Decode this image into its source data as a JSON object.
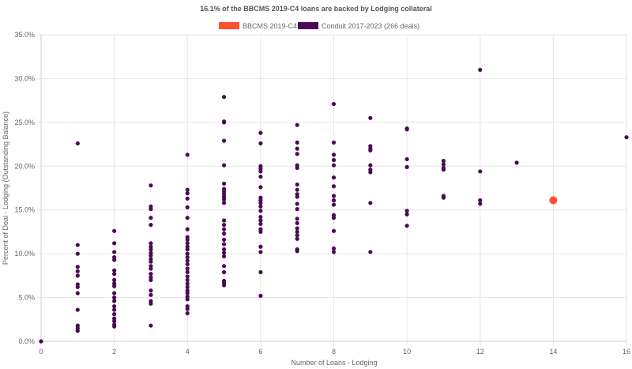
{
  "chart_data": {
    "type": "scatter",
    "title": "16.1% of the BBCMS 2019-C4 loans are backed by Lodging collateral",
    "xlabel": "Number of Loans - Lodging",
    "ylabel": "Percent of Deal - Lodging (Outstanding Balance)",
    "xlim": [
      0,
      16
    ],
    "ylim": [
      0,
      35
    ],
    "x_ticks": [
      "0",
      "2",
      "4",
      "6",
      "8",
      "10",
      "12",
      "14",
      "16"
    ],
    "y_ticks": [
      "0.0%",
      "5.0%",
      "10.0%",
      "15.0%",
      "20.0%",
      "25.0%",
      "30.0%",
      "35.0%"
    ],
    "grid": true,
    "legend_position": "top",
    "series": [
      {
        "name": "BBCMS 2019-C4",
        "color": "#ff4f2e",
        "points": [
          [
            14,
            16.1
          ]
        ]
      },
      {
        "name": "Conduit 2017-2023 (266 deals)",
        "color": "#4b0a55",
        "points": [
          [
            0,
            0.0
          ],
          [
            1,
            22.6
          ],
          [
            1,
            11.0
          ],
          [
            1,
            10.0
          ],
          [
            1,
            8.5
          ],
          [
            1,
            8.0
          ],
          [
            1,
            7.5
          ],
          [
            1,
            6.5
          ],
          [
            1,
            6.2
          ],
          [
            1,
            5.5
          ],
          [
            1,
            3.6
          ],
          [
            1,
            1.8
          ],
          [
            1,
            1.5
          ],
          [
            1,
            1.2
          ],
          [
            2,
            12.6
          ],
          [
            2,
            11.2
          ],
          [
            2,
            10.2
          ],
          [
            2,
            9.6
          ],
          [
            2,
            9.3
          ],
          [
            2,
            8.1
          ],
          [
            2,
            7.7
          ],
          [
            2,
            7.0
          ],
          [
            2,
            6.6
          ],
          [
            2,
            6.3
          ],
          [
            2,
            5.5
          ],
          [
            2,
            5.0
          ],
          [
            2,
            4.6
          ],
          [
            2,
            4.0
          ],
          [
            2,
            3.6
          ],
          [
            2,
            3.1
          ],
          [
            2,
            2.6
          ],
          [
            2,
            2.3
          ],
          [
            2,
            1.9
          ],
          [
            2,
            1.7
          ],
          [
            3,
            17.8
          ],
          [
            3,
            15.4
          ],
          [
            3,
            15.1
          ],
          [
            3,
            14.1
          ],
          [
            3,
            13.3
          ],
          [
            3,
            11.2
          ],
          [
            3,
            10.8
          ],
          [
            3,
            10.5
          ],
          [
            3,
            10.1
          ],
          [
            3,
            9.8
          ],
          [
            3,
            9.4
          ],
          [
            3,
            9.1
          ],
          [
            3,
            8.6
          ],
          [
            3,
            8.3
          ],
          [
            3,
            7.7
          ],
          [
            3,
            7.3
          ],
          [
            3,
            7.0
          ],
          [
            3,
            5.8
          ],
          [
            3,
            5.3
          ],
          [
            3,
            4.6
          ],
          [
            3,
            4.3
          ],
          [
            3,
            1.8
          ],
          [
            4,
            21.3
          ],
          [
            4,
            17.3
          ],
          [
            4,
            16.9
          ],
          [
            4,
            16.3
          ],
          [
            4,
            15.3
          ],
          [
            4,
            14.1
          ],
          [
            4,
            12.8
          ],
          [
            4,
            11.9
          ],
          [
            4,
            11.6
          ],
          [
            4,
            11.2
          ],
          [
            4,
            10.8
          ],
          [
            4,
            10.5
          ],
          [
            4,
            10.0
          ],
          [
            4,
            9.6
          ],
          [
            4,
            9.2
          ],
          [
            4,
            8.8
          ],
          [
            4,
            8.3
          ],
          [
            4,
            7.9
          ],
          [
            4,
            7.4
          ],
          [
            4,
            7.0
          ],
          [
            4,
            6.6
          ],
          [
            4,
            6.2
          ],
          [
            4,
            5.8
          ],
          [
            4,
            5.5
          ],
          [
            4,
            5.1
          ],
          [
            4,
            4.8
          ],
          [
            4,
            4.0
          ],
          [
            4,
            3.7
          ],
          [
            4,
            3.2
          ],
          [
            5,
            27.9
          ],
          [
            5,
            25.1
          ],
          [
            5,
            25.0
          ],
          [
            5,
            22.9
          ],
          [
            5,
            20.1
          ],
          [
            5,
            18.0
          ],
          [
            5,
            17.4
          ],
          [
            5,
            17.1
          ],
          [
            5,
            16.8
          ],
          [
            5,
            16.5
          ],
          [
            5,
            16.2
          ],
          [
            5,
            15.8
          ],
          [
            5,
            13.8
          ],
          [
            5,
            13.3
          ],
          [
            5,
            12.8
          ],
          [
            5,
            12.3
          ],
          [
            5,
            11.6
          ],
          [
            5,
            11.1
          ],
          [
            5,
            10.5
          ],
          [
            5,
            10.1
          ],
          [
            5,
            9.7
          ],
          [
            5,
            8.6
          ],
          [
            5,
            7.9
          ],
          [
            5,
            6.9
          ],
          [
            5,
            6.7
          ],
          [
            5,
            6.4
          ],
          [
            6,
            23.8
          ],
          [
            6,
            22.6
          ],
          [
            6,
            20.0
          ],
          [
            6,
            19.7
          ],
          [
            6,
            19.4
          ],
          [
            6,
            18.8
          ],
          [
            6,
            17.6
          ],
          [
            6,
            16.4
          ],
          [
            6,
            16.1
          ],
          [
            6,
            15.8
          ],
          [
            6,
            15.4
          ],
          [
            6,
            14.9
          ],
          [
            6,
            14.2
          ],
          [
            6,
            13.8
          ],
          [
            6,
            13.4
          ],
          [
            6,
            12.8
          ],
          [
            6,
            12.5
          ],
          [
            6,
            10.8
          ],
          [
            6,
            10.2
          ],
          [
            6,
            7.9
          ],
          [
            6,
            5.2
          ],
          [
            7,
            24.7
          ],
          [
            7,
            22.7
          ],
          [
            7,
            22.0
          ],
          [
            7,
            21.4
          ],
          [
            7,
            20.1
          ],
          [
            7,
            19.8
          ],
          [
            7,
            17.9
          ],
          [
            7,
            17.3
          ],
          [
            7,
            16.8
          ],
          [
            7,
            16.5
          ],
          [
            7,
            15.7
          ],
          [
            7,
            15.1
          ],
          [
            7,
            14.0
          ],
          [
            7,
            13.5
          ],
          [
            7,
            12.9
          ],
          [
            7,
            12.5
          ],
          [
            7,
            12.1
          ],
          [
            7,
            11.7
          ],
          [
            7,
            10.5
          ],
          [
            7,
            10.3
          ],
          [
            8,
            27.1
          ],
          [
            8,
            22.7
          ],
          [
            8,
            21.3
          ],
          [
            8,
            20.7
          ],
          [
            8,
            20.1
          ],
          [
            8,
            18.7
          ],
          [
            8,
            17.7
          ],
          [
            8,
            16.6
          ],
          [
            8,
            16.1
          ],
          [
            8,
            15.6
          ],
          [
            8,
            14.4
          ],
          [
            8,
            14.1
          ],
          [
            8,
            12.6
          ],
          [
            8,
            10.6
          ],
          [
            8,
            10.2
          ],
          [
            9,
            25.5
          ],
          [
            9,
            22.3
          ],
          [
            9,
            22.0
          ],
          [
            9,
            21.8
          ],
          [
            9,
            20.1
          ],
          [
            9,
            19.6
          ],
          [
            9,
            19.3
          ],
          [
            9,
            15.8
          ],
          [
            9,
            10.2
          ],
          [
            10,
            24.3
          ],
          [
            10,
            24.2
          ],
          [
            10,
            20.8
          ],
          [
            10,
            19.9
          ],
          [
            10,
            14.9
          ],
          [
            10,
            14.5
          ],
          [
            10,
            13.2
          ],
          [
            11,
            20.6
          ],
          [
            11,
            20.2
          ],
          [
            11,
            19.8
          ],
          [
            11,
            19.6
          ],
          [
            11,
            16.6
          ],
          [
            11,
            16.4
          ],
          [
            12,
            31.0
          ],
          [
            12,
            19.4
          ],
          [
            12,
            16.1
          ],
          [
            12,
            15.7
          ],
          [
            13,
            20.4
          ],
          [
            16,
            23.3
          ]
        ]
      }
    ]
  }
}
